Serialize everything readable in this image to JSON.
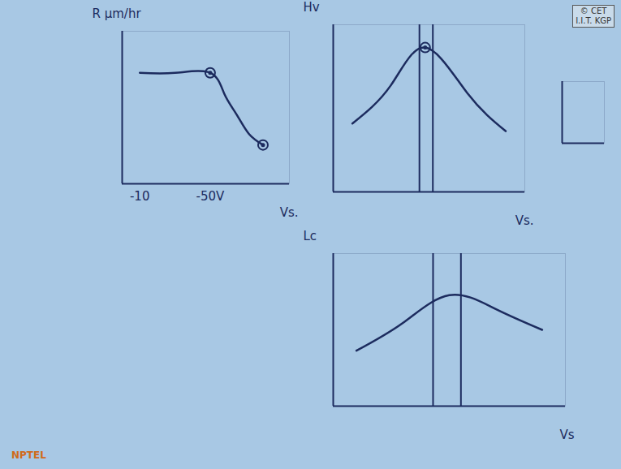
{
  "chart_data": [
    {
      "type": "line",
      "ylabel": "R μm/hr",
      "xlabel": "Vs.",
      "x": [
        -10,
        -30,
        -50,
        -58,
        -65,
        -72,
        -80
      ],
      "values": [
        80,
        80,
        80,
        65,
        50,
        36,
        28
      ],
      "xlim": [
        0,
        -95
      ],
      "ylim": [
        0,
        110
      ],
      "xticks": [
        {
          "value": -10,
          "label": "-10"
        },
        {
          "value": -50,
          "label": "-50V"
        }
      ],
      "yticks": [],
      "marked_x": [
        -50,
        -80
      ],
      "tick_labels": "x"
    },
    {
      "type": "line",
      "ylabel": "Hv",
      "xlabel": "Vs.",
      "x": [
        10,
        30,
        48,
        70,
        90
      ],
      "values": [
        45,
        70,
        95,
        65,
        40
      ],
      "xlim": [
        0,
        100
      ],
      "ylim": [
        0,
        110
      ],
      "xticks": [],
      "yticks": [],
      "vlines": [
        45,
        52
      ],
      "marked_x": [
        48
      ],
      "tick_labels": false
    },
    {
      "type": "line",
      "ylabel": "Lc",
      "xlabel": "Vs",
      "x": [
        10,
        30,
        50,
        70,
        90
      ],
      "values": [
        40,
        60,
        80,
        70,
        55
      ],
      "xlim": [
        0,
        100
      ],
      "ylim": [
        0,
        110
      ],
      "xticks": [],
      "yticks": [],
      "vlines": [
        43,
        55
      ],
      "marked_x": [],
      "tick_labels": false
    },
    {
      "type": "line",
      "x": [],
      "values": [],
      "xlim": [
        0,
        100
      ],
      "ylim": [
        0,
        110
      ],
      "xticks": [],
      "yticks": [],
      "tick_labels": false
    }
  ],
  "watermark": [
    "© CET",
    "I.I.T. KGP"
  ],
  "logo": "NPTEL"
}
